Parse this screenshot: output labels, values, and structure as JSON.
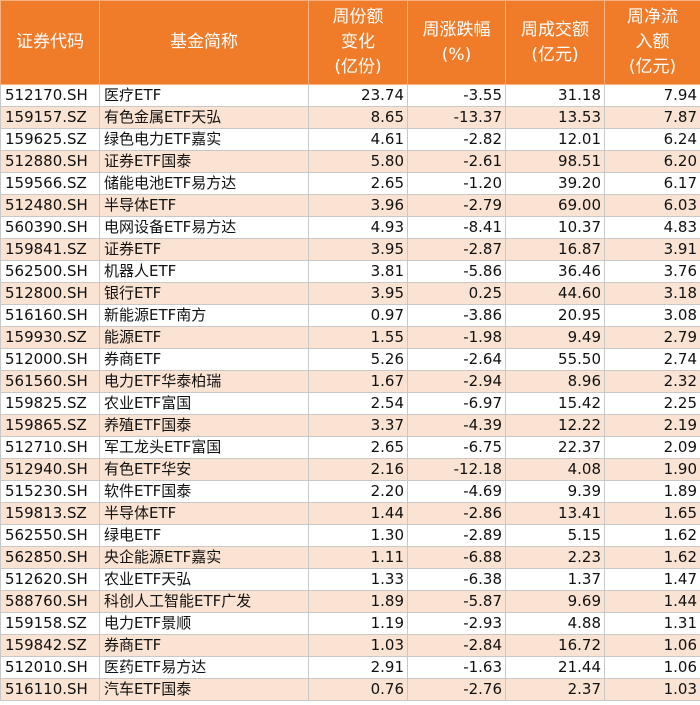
{
  "headers": [
    [
      "证券代码"
    ],
    [
      "基金简称"
    ],
    [
      "周份额",
      "变化",
      "(亿份)"
    ],
    [
      "周涨跌幅",
      "(%)"
    ],
    [
      "周成交额",
      "(亿元)"
    ],
    [
      "周净流",
      "入额",
      "(亿元)"
    ]
  ],
  "rows": [
    [
      "512170.SH",
      "医疗ETF",
      "23.74",
      "-3.55",
      "31.18",
      "7.94"
    ],
    [
      "159157.SZ",
      "有色金属ETF天弘",
      "8.65",
      "-13.37",
      "13.53",
      "7.87"
    ],
    [
      "159625.SZ",
      "绿色电力ETF嘉实",
      "4.61",
      "-2.82",
      "12.01",
      "6.24"
    ],
    [
      "512880.SH",
      "证券ETF国泰",
      "5.80",
      "-2.61",
      "98.51",
      "6.20"
    ],
    [
      "159566.SZ",
      "储能电池ETF易方达",
      "2.65",
      "-1.20",
      "39.20",
      "6.17"
    ],
    [
      "512480.SH",
      "半导体ETF",
      "3.96",
      "-2.79",
      "69.00",
      "6.03"
    ],
    [
      "560390.SH",
      "电网设备ETF易方达",
      "4.93",
      "-8.41",
      "10.37",
      "4.83"
    ],
    [
      "159841.SZ",
      "证券ETF",
      "3.95",
      "-2.87",
      "16.87",
      "3.91"
    ],
    [
      "562500.SH",
      "机器人ETF",
      "3.81",
      "-5.86",
      "36.46",
      "3.76"
    ],
    [
      "512800.SH",
      "银行ETF",
      "3.95",
      "0.25",
      "44.60",
      "3.18"
    ],
    [
      "516160.SH",
      "新能源ETF南方",
      "0.97",
      "-3.86",
      "20.95",
      "3.08"
    ],
    [
      "159930.SZ",
      "能源ETF",
      "1.55",
      "-1.98",
      "9.49",
      "2.79"
    ],
    [
      "512000.SH",
      "券商ETF",
      "5.26",
      "-2.64",
      "55.50",
      "2.74"
    ],
    [
      "561560.SH",
      "电力ETF华泰柏瑞",
      "1.67",
      "-2.94",
      "8.96",
      "2.32"
    ],
    [
      "159825.SZ",
      "农业ETF富国",
      "2.54",
      "-6.97",
      "15.42",
      "2.25"
    ],
    [
      "159865.SZ",
      "养殖ETF国泰",
      "3.37",
      "-4.39",
      "12.22",
      "2.19"
    ],
    [
      "512710.SH",
      "军工龙头ETF富国",
      "2.65",
      "-6.75",
      "22.37",
      "2.09"
    ],
    [
      "512940.SH",
      "有色ETF华安",
      "2.16",
      "-12.18",
      "4.08",
      "1.90"
    ],
    [
      "515230.SH",
      "软件ETF国泰",
      "2.20",
      "-4.69",
      "9.39",
      "1.89"
    ],
    [
      "159813.SZ",
      "半导体ETF",
      "1.44",
      "-2.86",
      "13.41",
      "1.65"
    ],
    [
      "562550.SH",
      "绿电ETF",
      "1.30",
      "-2.89",
      "5.15",
      "1.62"
    ],
    [
      "562850.SH",
      "央企能源ETF嘉实",
      "1.11",
      "-6.88",
      "2.23",
      "1.62"
    ],
    [
      "512620.SH",
      "农业ETF天弘",
      "1.33",
      "-6.38",
      "1.37",
      "1.47"
    ],
    [
      "588760.SH",
      "科创人工智能ETF广发",
      "1.89",
      "-5.87",
      "9.69",
      "1.44"
    ],
    [
      "159158.SZ",
      "电力ETF景顺",
      "1.19",
      "-2.93",
      "4.88",
      "1.31"
    ],
    [
      "159842.SZ",
      "券商ETF",
      "1.03",
      "-2.84",
      "16.72",
      "1.06"
    ],
    [
      "512010.SH",
      "医药ETF易方达",
      "2.91",
      "-1.63",
      "21.44",
      "1.06"
    ],
    [
      "516110.SH",
      "汽车ETF国泰",
      "0.76",
      "-2.76",
      "2.37",
      "1.03"
    ]
  ]
}
